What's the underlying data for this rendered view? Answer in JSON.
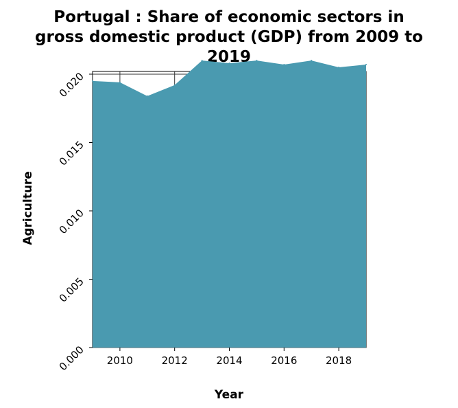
{
  "chart_data": {
    "type": "area",
    "title_lines": [
      "Portugal : Share of economic sectors in",
      "gross domestic product (GDP) from 2009 to",
      "2019"
    ],
    "xlabel": "Year",
    "ylabel": "Agriculture",
    "x": [
      2009,
      2010,
      2011,
      2012,
      2013,
      2014,
      2015,
      2016,
      2017,
      2018,
      2019
    ],
    "values": [
      0.0195,
      0.0194,
      0.0184,
      0.0192,
      0.021,
      0.0208,
      0.021,
      0.0207,
      0.021,
      0.0205,
      0.0207
    ],
    "xlim": [
      2009,
      2019
    ],
    "ylim": [
      0,
      0.0202
    ],
    "x_ticks": [
      2010,
      2012,
      2014,
      2016,
      2018
    ],
    "y_ticks": [
      0,
      0.005,
      0.01,
      0.015,
      0.02
    ],
    "y_tick_labels": [
      "0.000",
      "0.005",
      "0.010",
      "0.015",
      "0.020"
    ],
    "fill_color": "#4a9ab0",
    "grid": true
  }
}
